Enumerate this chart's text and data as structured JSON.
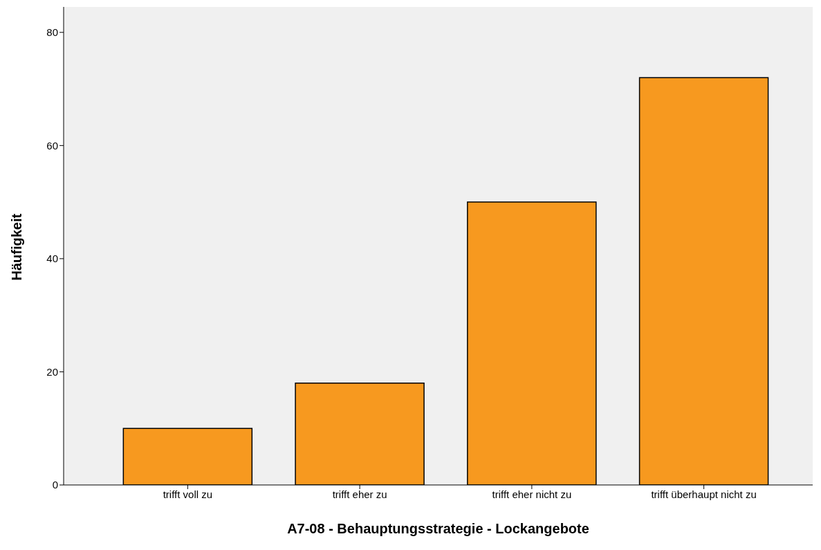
{
  "chart_data": {
    "type": "bar",
    "xlabel": "A7-08 - Behauptungsstrategie - Lockangebote",
    "ylabel": "Häufigkeit",
    "categories": [
      "trifft voll zu",
      "trifft eher zu",
      "trifft eher nicht zu",
      "trifft überhaupt nicht zu"
    ],
    "values": [
      10,
      18,
      50,
      72
    ],
    "color": "#f7991f",
    "ylim": [
      0,
      84.5
    ],
    "yticks": [
      0,
      20,
      40,
      60,
      80
    ],
    "grid": false,
    "legend": false
  }
}
